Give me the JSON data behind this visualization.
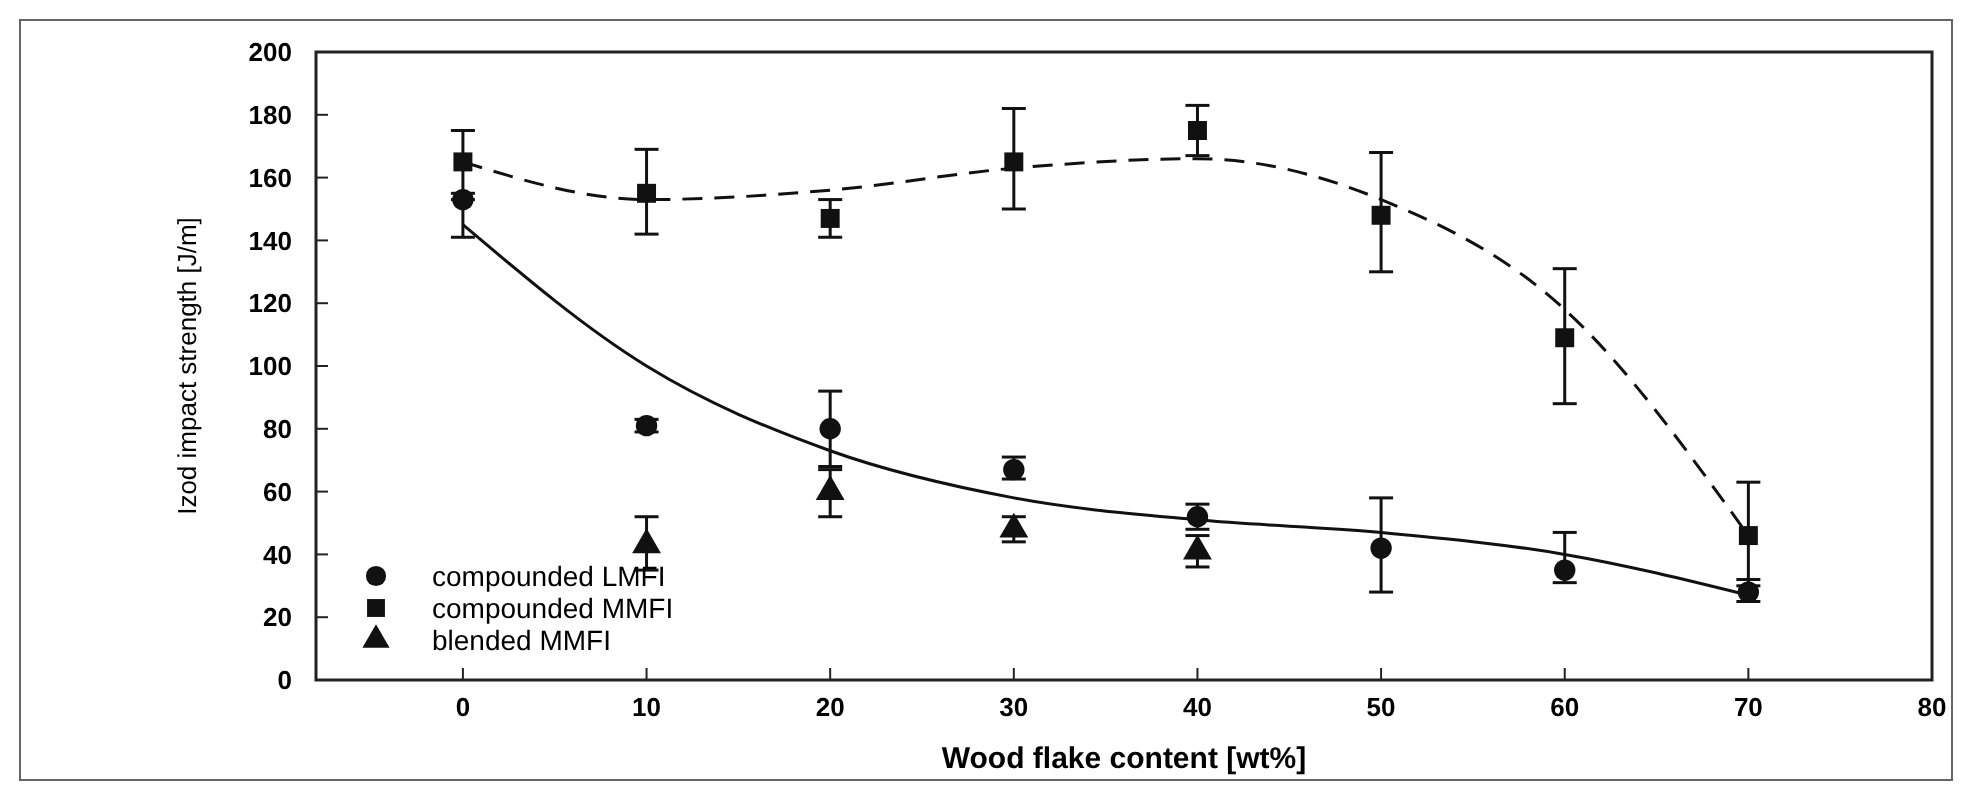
{
  "chart_data": {
    "type": "scatter",
    "xlabel": "Wood flake content [wt%]",
    "ylabel": "Izod impact strength [J/m]",
    "xlim": [
      -8,
      80
    ],
    "ylim": [
      0,
      200
    ],
    "xticks": [
      0,
      10,
      20,
      30,
      40,
      50,
      60,
      70,
      80
    ],
    "yticks": [
      0,
      20,
      40,
      60,
      80,
      100,
      120,
      140,
      160,
      180,
      200
    ],
    "grid": false,
    "legend": "bottom left",
    "series": [
      {
        "name": "compounded LMFI",
        "color": "#111111",
        "marker": "circle",
        "x": [
          0,
          10,
          20,
          30,
          40,
          50,
          60,
          70
        ],
        "values": [
          153,
          81,
          80,
          67,
          52,
          42,
          35,
          28
        ],
        "errors": [
          [
            141,
            153
          ],
          [
            79,
            83
          ],
          [
            68,
            92
          ],
          [
            64,
            71
          ],
          [
            48,
            56
          ],
          [
            28,
            58
          ],
          [
            31,
            47
          ],
          [
            25,
            32
          ]
        ]
      },
      {
        "name": "compounded MMFI",
        "color": "#111111",
        "marker": "square",
        "x": [
          0,
          10,
          20,
          30,
          40,
          50,
          60,
          70
        ],
        "values": [
          165,
          155,
          147,
          165,
          175,
          148,
          109,
          46
        ],
        "errors": [
          [
            155,
            175
          ],
          [
            142,
            169
          ],
          [
            141,
            153
          ],
          [
            150,
            182
          ],
          [
            167,
            183
          ],
          [
            130,
            168
          ],
          [
            88,
            131
          ],
          [
            30,
            63
          ]
        ]
      },
      {
        "name": "blended MMFI",
        "color": "#111111",
        "marker": "triangle",
        "x": [
          10,
          20,
          30,
          40
        ],
        "values": [
          43,
          60,
          48,
          41
        ],
        "errors": [
          [
            35,
            52
          ],
          [
            52,
            67
          ],
          [
            44,
            52
          ],
          [
            36,
            46
          ]
        ]
      },
      {
        "type": "line",
        "color": "#111111",
        "marker": "none",
        "line_style": "dashed",
        "x": [
          0,
          10,
          20,
          30,
          40,
          50,
          60,
          70
        ],
        "values": [
          165,
          153,
          156,
          163,
          166,
          153,
          118,
          46
        ]
      },
      {
        "type": "line",
        "color": "#111111",
        "marker": "none",
        "line_style": "solid",
        "x": [
          0,
          10,
          20,
          30,
          40,
          50,
          60,
          70
        ],
        "values": [
          145,
          100,
          73,
          58,
          51,
          47,
          40,
          27
        ]
      }
    ]
  }
}
